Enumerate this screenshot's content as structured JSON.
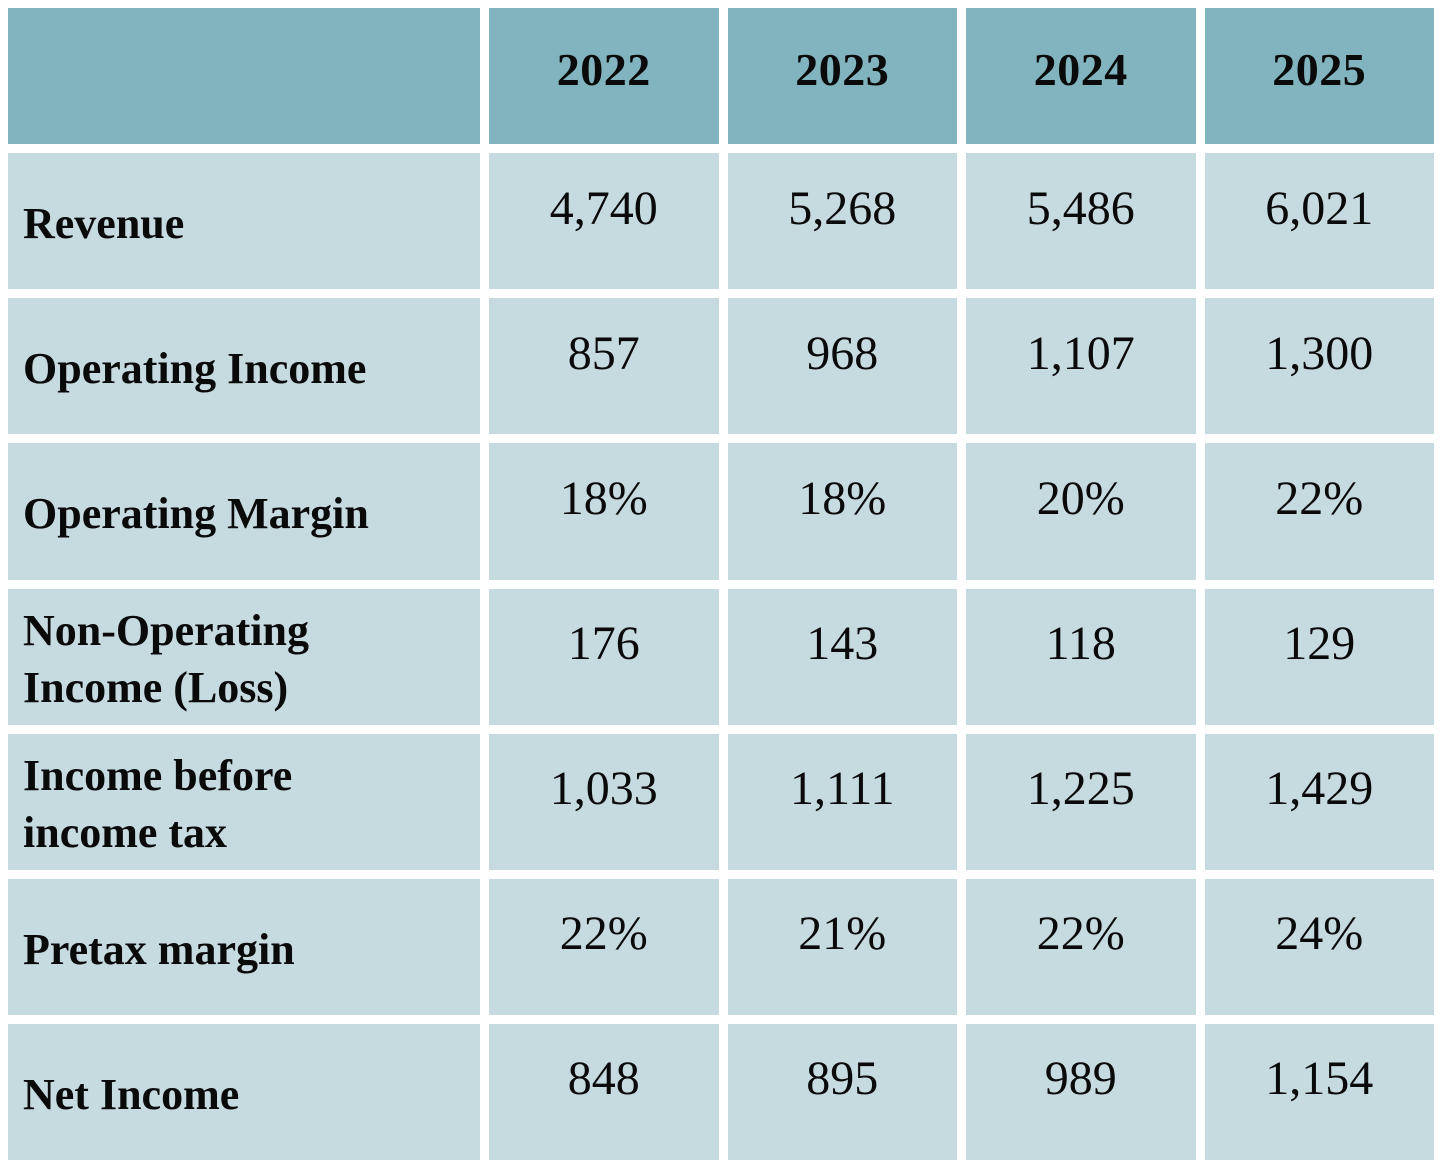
{
  "chart_data": {
    "type": "table",
    "corner_label": "",
    "columns": [
      "2022",
      "2023",
      "2024",
      "2025"
    ],
    "rows": [
      {
        "label": "Revenue",
        "values": [
          "4,740",
          "5,268",
          "5,486",
          "6,021"
        ]
      },
      {
        "label": "Operating Income",
        "values": [
          "857",
          "968",
          "1,107",
          "1,300"
        ]
      },
      {
        "label": "Operating Margin",
        "values": [
          "18%",
          "18%",
          "20%",
          "22%"
        ]
      },
      {
        "label": "Non-Operating Income (Loss)",
        "values": [
          "176",
          "143",
          "118",
          "129"
        ]
      },
      {
        "label": "Income before income tax",
        "values": [
          "1,033",
          "1,111",
          "1,225",
          "1,429"
        ]
      },
      {
        "label": "Pretax margin",
        "values": [
          "22%",
          "21%",
          "22%",
          "24%"
        ]
      },
      {
        "label": "Net Income",
        "values": [
          "848",
          "895",
          "989",
          "1,154"
        ]
      }
    ],
    "layout": {
      "grid": "on",
      "header_position": "top",
      "label_column_position": "left"
    },
    "colors": {
      "header_bg": "#81b4bf",
      "row_bg": "#c6dbdf",
      "grid_gap": "#ffffff",
      "text": "#0a0a0a"
    }
  }
}
